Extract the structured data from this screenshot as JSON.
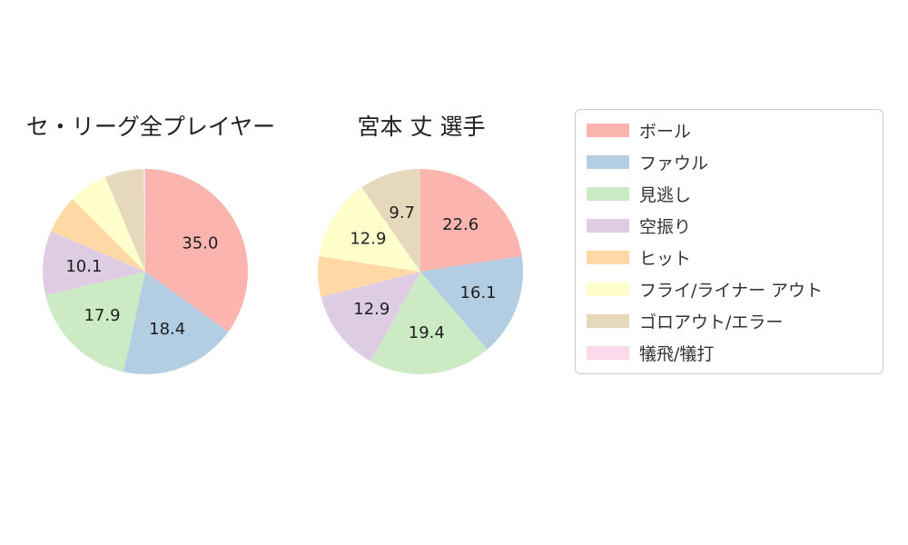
{
  "figure": {
    "background": "#ffffff"
  },
  "chart_data": [
    {
      "type": "pie",
      "title": "セ・リーグ全プレイヤー",
      "categories": [
        "ボール",
        "ファウル",
        "見逃し",
        "空振り",
        "ヒット",
        "フライ/ライナー アウト",
        "ゴロアウト/エラー",
        "犠飛/犠打"
      ],
      "values": [
        35.0,
        18.4,
        17.9,
        10.1,
        6.1,
        6.1,
        6.1,
        0.3
      ],
      "slice_labels": [
        "35.0",
        "18.4",
        "17.9",
        "10.1",
        "",
        "",
        "",
        ""
      ],
      "colors": [
        "#fbb4ae",
        "#b3cde3",
        "#ccebc5",
        "#decbe4",
        "#fed9a6",
        "#ffffcc",
        "#e5d8bd",
        "#fddaec"
      ],
      "start_angle": "top",
      "direction": "clockwise",
      "label_distance": 0.6
    },
    {
      "type": "pie",
      "title": "宮本 丈 選手",
      "categories": [
        "ボール",
        "ファウル",
        "見逃し",
        "空振り",
        "ヒット",
        "フライ/ライナー アウト",
        "ゴロアウト/エラー",
        "犠飛/犠打"
      ],
      "values": [
        22.6,
        16.1,
        19.4,
        12.9,
        6.4,
        12.9,
        9.7,
        0.0
      ],
      "slice_labels": [
        "22.6",
        "16.1",
        "19.4",
        "12.9",
        "",
        "12.9",
        "9.7",
        ""
      ],
      "colors": [
        "#fbb4ae",
        "#b3cde3",
        "#ccebc5",
        "#decbe4",
        "#fed9a6",
        "#ffffcc",
        "#e5d8bd",
        "#fddaec"
      ],
      "start_angle": "top",
      "direction": "clockwise",
      "label_distance": 0.6
    }
  ],
  "legend": {
    "position": "right",
    "border_color": "#cccccc",
    "text_color": "#333333",
    "items": [
      {
        "key": "ball",
        "label": "ボール",
        "color": "#fbb4ae"
      },
      {
        "key": "foul",
        "label": "ファウル",
        "color": "#b3cde3"
      },
      {
        "key": "called-strike",
        "label": "見逃し",
        "color": "#ccebc5"
      },
      {
        "key": "swinging-strike",
        "label": "空振り",
        "color": "#decbe4"
      },
      {
        "key": "hit",
        "label": "ヒット",
        "color": "#fed9a6"
      },
      {
        "key": "fly-liner-out",
        "label": "フライ/ライナー アウト",
        "color": "#ffffcc"
      },
      {
        "key": "ground-out-error",
        "label": "ゴロアウト/エラー",
        "color": "#e5d8bd"
      },
      {
        "key": "sacrifice",
        "label": "犠飛/犠打",
        "color": "#fddaec"
      }
    ]
  }
}
